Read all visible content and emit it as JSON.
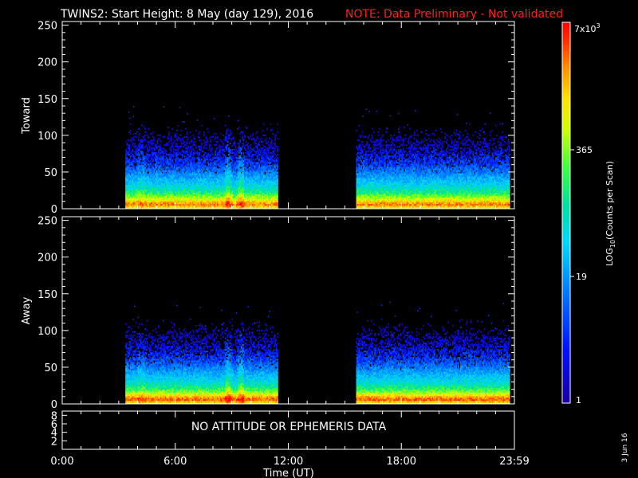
{
  "header": {
    "title": "TWINS2: Start Height:  8 May (day 129), 2016",
    "note": "NOTE: Data Preliminary - Not validated"
  },
  "footer": {
    "x_axis_label": "Time (UT)",
    "side_date": "3 Jun 16",
    "no_data_message": "NO ATTITUDE OR EPHEMERIS DATA"
  },
  "colorbar": {
    "label_main": "LOG",
    "label_sub": "10",
    "label_rest": "(Counts per Scan)",
    "max_label_base": "7x10",
    "max_label_exp": "3",
    "ticks": [
      "365",
      "19",
      "1"
    ]
  },
  "colors": {
    "title": "#ffffff",
    "note": "#ff2020",
    "axes": "#ffffff",
    "background": "#000000"
  },
  "chart_data": [
    {
      "type": "heatmap",
      "title": "",
      "ylabel": "Toward",
      "xlabel": "",
      "ylim": [
        0,
        255
      ],
      "yticks": [
        "0",
        "50",
        "100",
        "150",
        "200",
        "250"
      ],
      "xlim_hours": [
        0,
        24
      ],
      "data_intervals_hours": [
        [
          3.35,
          11.4
        ],
        [
          15.6,
          23.75
        ]
      ],
      "profile_height_bins": [
        0,
        5,
        10,
        15,
        20,
        30,
        40,
        50,
        60,
        80,
        100
      ],
      "profile_log_counts": [
        2.9,
        3.5,
        3.0,
        2.6,
        2.2,
        1.7,
        1.4,
        1.1,
        0.8,
        0.4,
        0.1
      ],
      "colorbar_range": [
        1,
        7000
      ]
    },
    {
      "type": "heatmap",
      "title": "",
      "ylabel": "Away",
      "xlabel": "Time (UT)",
      "ylim": [
        0,
        255
      ],
      "yticks": [
        "0",
        "50",
        "100",
        "150",
        "200",
        "250"
      ],
      "xticks": [
        "0:00",
        "6:00",
        "12:00",
        "18:00",
        "23:59"
      ],
      "xlim_hours": [
        0,
        24
      ],
      "data_intervals_hours": [
        [
          3.35,
          11.4
        ],
        [
          15.6,
          23.75
        ]
      ],
      "profile_height_bins": [
        0,
        5,
        10,
        15,
        20,
        30,
        40,
        50,
        60,
        80,
        100
      ],
      "profile_log_counts": [
        2.9,
        3.6,
        3.1,
        2.6,
        2.2,
        1.7,
        1.4,
        1.1,
        0.8,
        0.4,
        0.1
      ],
      "colorbar_range": [
        1,
        7000
      ]
    },
    {
      "type": "line",
      "title": "",
      "ylabel": "",
      "yticks": [
        "2",
        "4",
        "6",
        "8"
      ],
      "ylim": [
        0,
        9
      ]
    }
  ]
}
